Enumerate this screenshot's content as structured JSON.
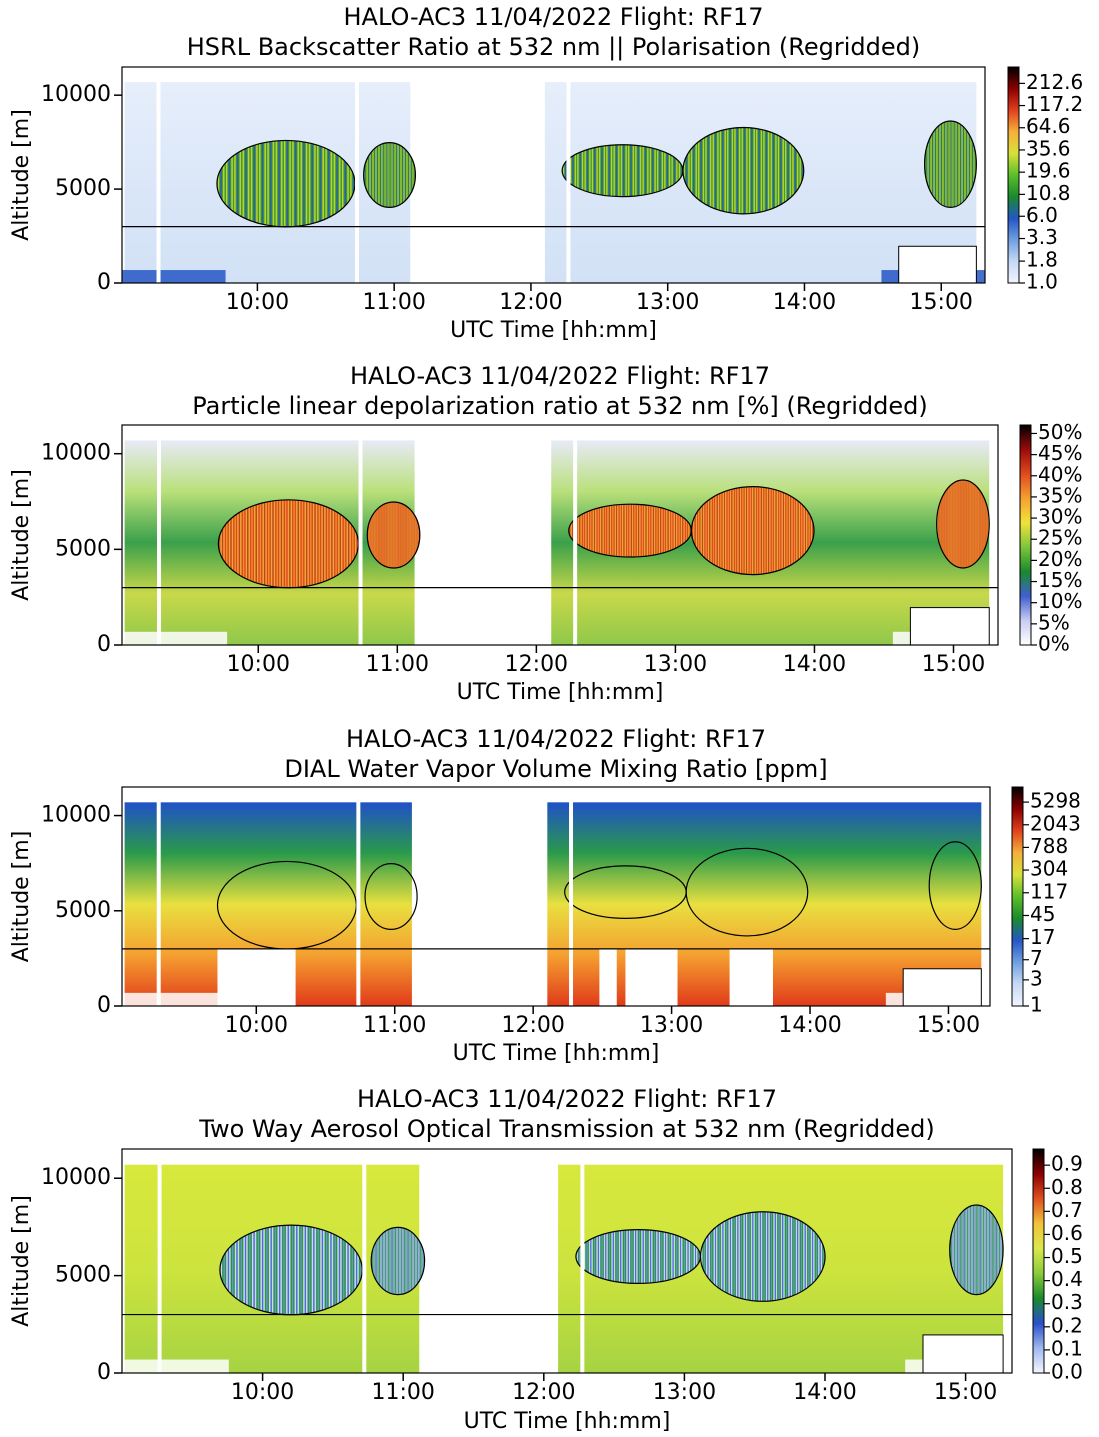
{
  "chart_data": [
    {
      "type": "heatmap",
      "title": "HALO-AC3 11/04/2022 Flight: RF17",
      "subtitle": "HSRL Backscatter Ratio at 532 nm || Polarisation (Regridded)",
      "xlabel": "UTC Time [hh:mm]",
      "ylabel": "Altitude [m]",
      "xlim": [
        9.01,
        15.32
      ],
      "xticks": [
        {
          "value": 10,
          "label": "10:00"
        },
        {
          "value": 11,
          "label": "11:00"
        },
        {
          "value": 12,
          "label": "12:00"
        },
        {
          "value": 13,
          "label": "13:00"
        },
        {
          "value": 14,
          "label": "14:00"
        },
        {
          "value": 15,
          "label": "15:00"
        }
      ],
      "ylim": [
        0,
        11500
      ],
      "yticks": [
        0,
        5000,
        10000
      ],
      "hline": 3000,
      "colorbar": {
        "lim": [
          1,
          330
        ],
        "log": true,
        "ticks": [
          {
            "value": 1,
            "label": "1.0"
          },
          1.8,
          3.3,
          {
            "value": 6,
            "label": "6.0"
          },
          10.8,
          19.6,
          35.6,
          64.6,
          117.2,
          212.6
        ],
        "colormap": [
          "#f0f4ff",
          "#c6d9f5",
          "#6f9fe0",
          "#2456c4",
          "#1a8a2c",
          "#5cbf2a",
          "#d8e03a",
          "#f5b03a",
          "#e0401d",
          "#8b0000",
          "#000000"
        ]
      }
    },
    {
      "type": "heatmap",
      "title": "HALO-AC3 11/04/2022 Flight: RF17",
      "subtitle": "Particle linear depolarization ratio at 532 nm [%] (Regridded)",
      "xlabel": "UTC Time [hh:mm]",
      "ylabel": "Altitude [m]",
      "xlim": [
        9.02,
        15.32
      ],
      "xticks": [
        {
          "value": 10,
          "label": "10:00"
        },
        {
          "value": 11,
          "label": "11:00"
        },
        {
          "value": 12,
          "label": "12:00"
        },
        {
          "value": 13,
          "label": "13:00"
        },
        {
          "value": 14,
          "label": "14:00"
        },
        {
          "value": 15,
          "label": "15:00"
        }
      ],
      "ylim": [
        0,
        11500
      ],
      "yticks": [
        0,
        5000,
        10000
      ],
      "hline": 3000,
      "colorbar": {
        "lim": [
          0,
          52
        ],
        "log": false,
        "ticks": [
          {
            "value": 0,
            "label": "0%"
          },
          {
            "value": 5,
            "label": "5%"
          },
          {
            "value": 10,
            "label": "10%"
          },
          {
            "value": 15,
            "label": "15%"
          },
          {
            "value": 20,
            "label": "20%"
          },
          {
            "value": 25,
            "label": "25%"
          },
          {
            "value": 30,
            "label": "30%"
          },
          {
            "value": 35,
            "label": "35%"
          },
          {
            "value": 40,
            "label": "40%"
          },
          {
            "value": 45,
            "label": "45%"
          },
          {
            "value": 50,
            "label": "50%"
          }
        ],
        "colormap": [
          "#ffffff",
          "#c9cdf2",
          "#3f5fd0",
          "#1a8a2c",
          "#7cc63a",
          "#f2e23a",
          "#f5a030",
          "#e04a1d",
          "#9b0a0a",
          "#000000"
        ]
      }
    },
    {
      "type": "heatmap",
      "title": "HALO-AC3 11/04/2022 Flight: RF17",
      "subtitle": "DIAL Water Vapor Volume Mixing Ratio [ppm]",
      "xlabel": "UTC Time [hh:mm]",
      "ylabel": "Altitude [m]",
      "xlim": [
        9.03,
        15.3
      ],
      "xticks": [
        {
          "value": 10,
          "label": "10:00"
        },
        {
          "value": 11,
          "label": "11:00"
        },
        {
          "value": 12,
          "label": "12:00"
        },
        {
          "value": 13,
          "label": "13:00"
        },
        {
          "value": 14,
          "label": "14:00"
        },
        {
          "value": 15,
          "label": "15:00"
        }
      ],
      "ylim": [
        0,
        11500
      ],
      "yticks": [
        0,
        5000,
        10000
      ],
      "hline": 3000,
      "colorbar": {
        "lim": [
          1,
          10000
        ],
        "log": true,
        "ticks": [
          1,
          3,
          7,
          17,
          45,
          117,
          304,
          788,
          2043,
          5298
        ],
        "colormap": [
          "#f0f4ff",
          "#c6d9f5",
          "#6f9fe0",
          "#2456c4",
          "#1a8a2c",
          "#5cbf2a",
          "#d8e03a",
          "#f5b03a",
          "#e0401d",
          "#8b0000",
          "#000000"
        ]
      }
    },
    {
      "type": "heatmap",
      "title": "HALO-AC3 11/04/2022 Flight: RF17",
      "subtitle": "Two Way Aerosol Optical Transmission at 532 nm (Regridded)",
      "xlabel": "UTC Time [hh:mm]",
      "ylabel": "Altitude [m]",
      "xlim": [
        9.0,
        15.33
      ],
      "xticks": [
        {
          "value": 10,
          "label": "10:00"
        },
        {
          "value": 11,
          "label": "11:00"
        },
        {
          "value": 12,
          "label": "12:00"
        },
        {
          "value": 13,
          "label": "13:00"
        },
        {
          "value": 14,
          "label": "14:00"
        },
        {
          "value": 15,
          "label": "15:00"
        }
      ],
      "ylim": [
        0,
        11500
      ],
      "yticks": [
        0,
        5000,
        10000
      ],
      "hline": 3000,
      "colorbar": {
        "lim": [
          0,
          0.97
        ],
        "log": false,
        "ticks": [
          {
            "value": 0,
            "label": "0.0"
          },
          0.1,
          0.2,
          0.3,
          0.4,
          0.5,
          0.6,
          0.7,
          0.8,
          0.9
        ],
        "colormap": [
          "#f5f7ff",
          "#9fb8ee",
          "#2a4fcc",
          "#1a8a2c",
          "#8acb3a",
          "#d9e84a",
          "#f2c23a",
          "#e05020",
          "#8b0000",
          "#000000"
        ]
      }
    }
  ]
}
